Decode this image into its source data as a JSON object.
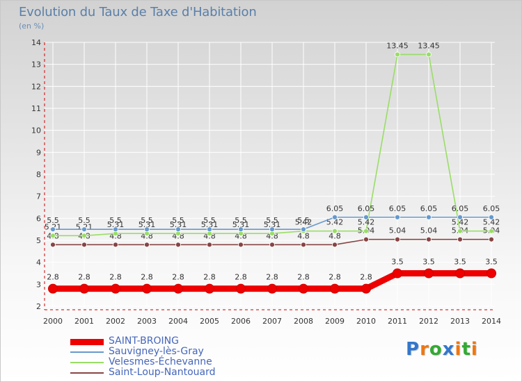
{
  "chart_data": {
    "type": "line",
    "title": "Evolution du Taux de Taxe d'Habitation",
    "subtitle": "(en %)",
    "xlabel": "",
    "ylabel": "",
    "ylim": [
      2,
      14
    ],
    "yticks": [
      2,
      3,
      4,
      5,
      6,
      7,
      8,
      9,
      10,
      11,
      12,
      13,
      14
    ],
    "x": [
      "2000",
      "2001",
      "2002",
      "2003",
      "2004",
      "2005",
      "2006",
      "2007",
      "2008",
      "2009",
      "2010",
      "2011",
      "2012",
      "2013",
      "2014"
    ],
    "series": [
      {
        "name": "SAINT-BROING",
        "color": "#ee0000",
        "values": [
          2.8,
          2.8,
          2.8,
          2.8,
          2.8,
          2.8,
          2.8,
          2.8,
          2.8,
          2.8,
          2.8,
          3.5,
          3.5,
          3.5,
          3.5
        ],
        "labels": [
          "2.8",
          "2.8",
          "2.8",
          "2.8",
          "2.8",
          "2.8",
          "2.8",
          "2.8",
          "2.8",
          "2.8",
          "2.8",
          "3.5",
          "3.5",
          "3.5",
          "3.5"
        ]
      },
      {
        "name": "Sauvigney-lès-Gray",
        "color": "#6699cc",
        "values": [
          5.5,
          5.5,
          5.5,
          5.5,
          5.5,
          5.5,
          5.5,
          5.5,
          5.5,
          6.05,
          6.05,
          6.05,
          6.05,
          6.05,
          6.05
        ],
        "labels": [
          "5.5",
          "5.5",
          "5.5",
          "5.5",
          "5.5",
          "5.5",
          "5.5",
          "5.5",
          "5.5",
          "6.05",
          "6.05",
          "6.05",
          "6.05",
          "6.05",
          "6.05"
        ]
      },
      {
        "name": "Velesmes-Échevanne",
        "color": "#99dd66",
        "values": [
          5.21,
          5.21,
          5.31,
          5.31,
          5.31,
          5.31,
          5.31,
          5.31,
          5.42,
          5.42,
          5.42,
          13.45,
          13.45,
          5.42,
          5.42
        ],
        "labels": [
          "5.21",
          "5.21",
          "5.31",
          "5.31",
          "5.31",
          "5.31",
          "5.31",
          "5.31",
          "5.42",
          "5.42",
          "5.42",
          "13.45",
          "13.45",
          "5.42",
          "5.42"
        ]
      },
      {
        "name": "Saint-Loup-Nantouard",
        "color": "#884444",
        "values": [
          4.8,
          4.8,
          4.8,
          4.8,
          4.8,
          4.8,
          4.8,
          4.8,
          4.8,
          4.8,
          5.04,
          5.04,
          5.04,
          5.04,
          5.04
        ],
        "labels": [
          "4.8",
          "4.8",
          "4.8",
          "4.8",
          "4.8",
          "4.8",
          "4.8",
          "4.8",
          "4.8",
          "4.8",
          "5.04",
          "5.04",
          "5.04",
          "5.04",
          "5.04"
        ]
      }
    ],
    "legend_position": "bottom-left"
  },
  "brand": {
    "letters": [
      "P",
      "r",
      "o",
      "x",
      "i",
      "t",
      "i"
    ],
    "colors": [
      "#3377cc",
      "#ee7711",
      "#33aa33",
      "#3377cc",
      "#ee7711",
      "#33aa33",
      "#ee7711"
    ]
  }
}
